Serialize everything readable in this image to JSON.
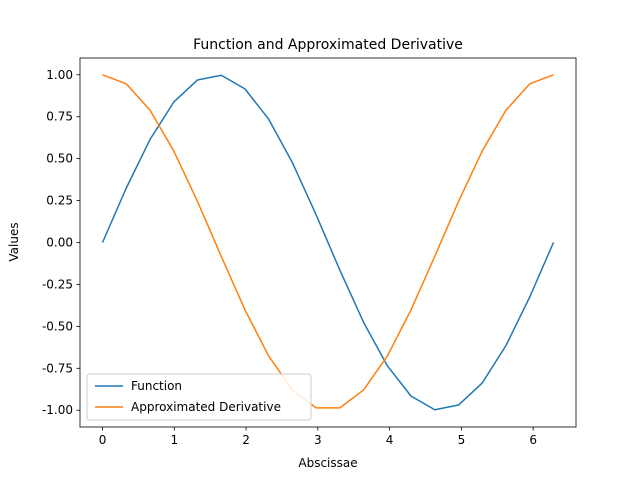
{
  "chart_data": {
    "type": "line",
    "title": "Function and Approximated Derivative",
    "xlabel": "Abscissae",
    "ylabel": "Values",
    "xlim": [
      -0.314,
      6.597
    ],
    "ylim": [
      -1.1,
      1.1
    ],
    "x_ticks": [
      0,
      1,
      2,
      3,
      4,
      5,
      6
    ],
    "y_ticks": [
      -1.0,
      -0.75,
      -0.5,
      -0.25,
      0.0,
      0.25,
      0.5,
      0.75,
      1.0
    ],
    "grid": false,
    "legend_placement": "lower-left",
    "series": [
      {
        "name": "Function",
        "color": "#1f77b4",
        "x": [
          0,
          0.3307,
          0.6614,
          0.9921,
          1.3228,
          1.6535,
          1.9842,
          2.3149,
          2.6456,
          2.9762,
          3.3069,
          3.6376,
          3.9683,
          4.299,
          4.6297,
          4.9604,
          5.2911,
          5.6218,
          5.9525,
          6.2832
        ],
        "y": [
          0.0,
          0.325,
          0.614,
          0.837,
          0.969,
          0.997,
          0.916,
          0.735,
          0.476,
          0.165,
          -0.165,
          -0.476,
          -0.735,
          -0.916,
          -0.997,
          -0.969,
          -0.837,
          -0.614,
          -0.325,
          0.0
        ]
      },
      {
        "name": "Approximated Derivative",
        "color": "#ff7f0e",
        "x": [
          0,
          0.3307,
          0.6614,
          0.9921,
          1.3228,
          1.6535,
          1.9842,
          2.3149,
          2.6456,
          2.9762,
          3.3069,
          3.6376,
          3.9683,
          4.299,
          4.6297,
          4.9604,
          5.2911,
          5.6218,
          5.9525,
          6.2832
        ],
        "y": [
          1.0,
          0.946,
          0.789,
          0.546,
          0.245,
          -0.082,
          -0.401,
          -0.677,
          -0.879,
          -0.986,
          -0.986,
          -0.879,
          -0.677,
          -0.401,
          -0.082,
          0.245,
          0.546,
          0.789,
          0.946,
          1.0
        ]
      }
    ]
  }
}
